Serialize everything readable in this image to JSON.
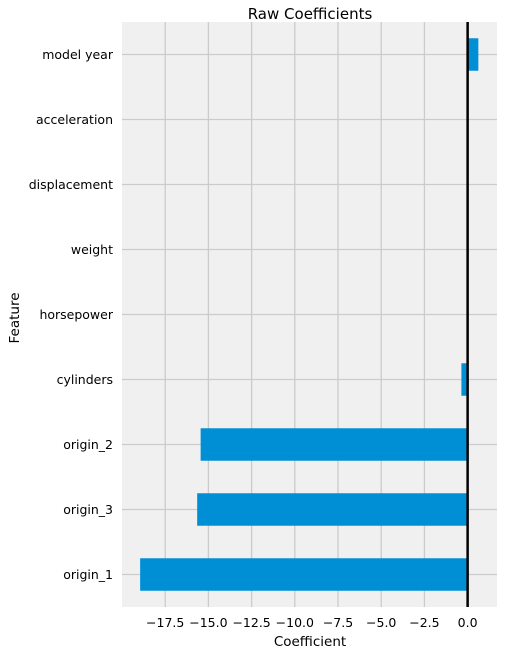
{
  "chart_data": {
    "type": "bar",
    "orientation": "horizontal",
    "title": "Raw Coefficients",
    "xlabel": "Coefficient",
    "ylabel": "Feature",
    "categories": [
      "model year",
      "acceleration",
      "displacement",
      "weight",
      "horsepower",
      "cylinders",
      "origin_2",
      "origin_3",
      "origin_1"
    ],
    "values": [
      0.62,
      0.01,
      0.01,
      -0.01,
      -0.01,
      -0.36,
      -15.45,
      -15.65,
      -18.95
    ],
    "xlim": [
      -20.0,
      1.7
    ],
    "xticks": [
      -17.5,
      -15.0,
      -12.5,
      -10.0,
      -7.5,
      -5.0,
      -2.5,
      0.0
    ],
    "xtick_labels": [
      "−17.5",
      "−15.0",
      "−12.5",
      "−10.0",
      "−7.5",
      "−5.0",
      "−2.5",
      "0.0"
    ],
    "grid": true,
    "zero_line": true,
    "colors": {
      "bar": "#008fd5",
      "plot_background": "#f0f0f0",
      "grid": "#cbcbcb",
      "zero_line": "#000000"
    }
  }
}
